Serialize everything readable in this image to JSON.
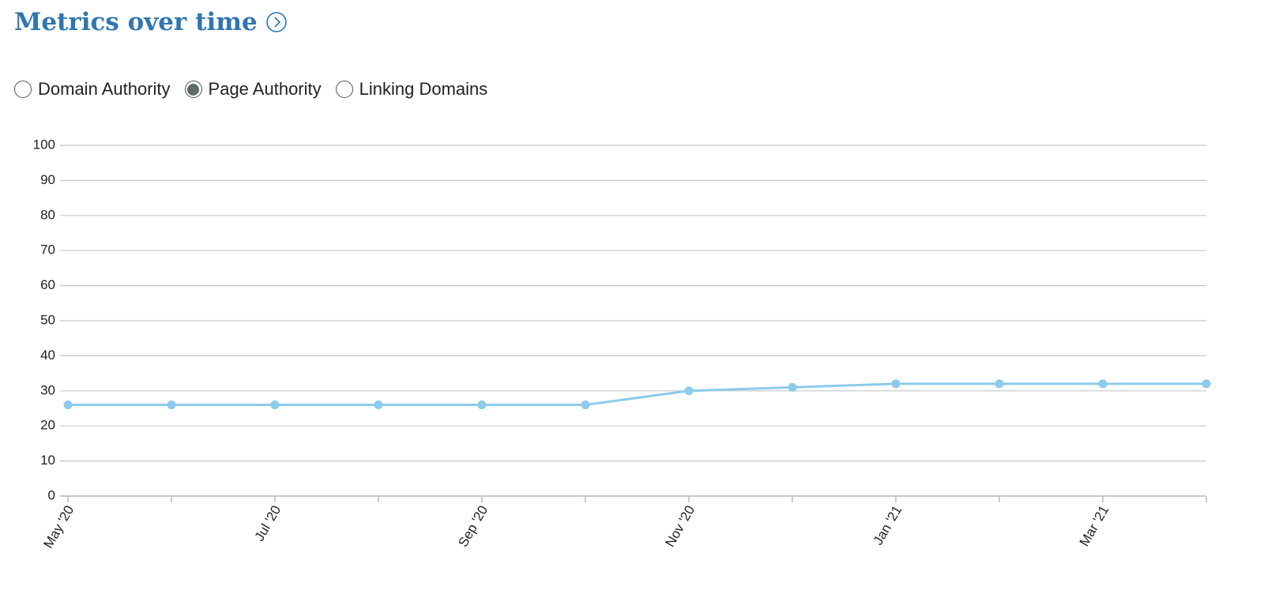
{
  "header": {
    "title": "Metrics over time"
  },
  "metric_options": {
    "options": [
      "Domain Authority",
      "Page Authority",
      "Linking Domains"
    ],
    "selected": 1
  },
  "chart_data": {
    "type": "line",
    "categories": [
      "May '20",
      null,
      "Jul '20",
      null,
      "Sep '20",
      null,
      "Nov '20",
      null,
      "Jan '21",
      null,
      "Mar '21",
      null
    ],
    "values": [
      26,
      26,
      26,
      26,
      26,
      26,
      30,
      31,
      32,
      32,
      32,
      32
    ],
    "color": "#8ccbec",
    "ylim": [
      0,
      100
    ],
    "yticks": [
      0,
      10,
      20,
      30,
      40,
      50,
      60,
      70,
      80,
      90,
      100
    ],
    "grid": true
  }
}
